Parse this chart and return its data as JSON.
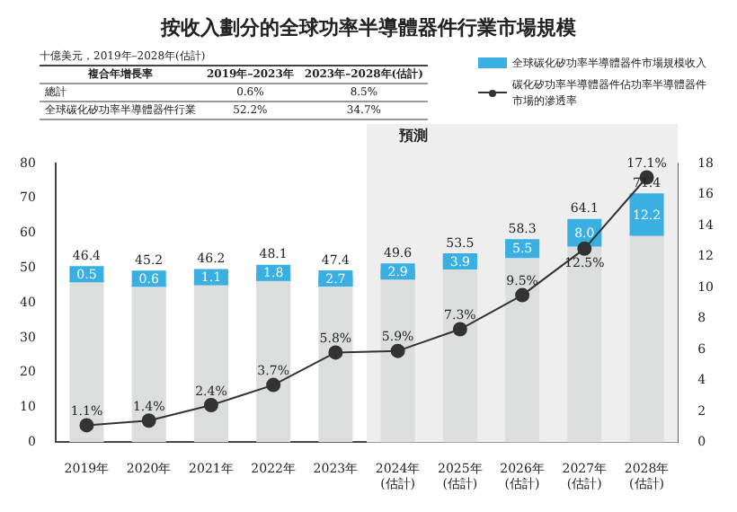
{
  "chart_data": {
    "type": "bar",
    "title": "按收入劃分的全球功率半導體器件行業市場規模",
    "categories": [
      "2019年",
      "2020年",
      "2021年",
      "2022年",
      "2023年",
      "2024年\n(估計)",
      "2025年\n(估計)",
      "2026年\n(估計)",
      "2027年\n(估計)",
      "2028年\n(估計)"
    ],
    "stacked": true,
    "series": [
      {
        "color": "#dcdedd",
        "values": [
          45.9,
          44.6,
          45.1,
          46.3,
          44.7,
          46.7,
          49.6,
          52.8,
          56.1,
          59.2
        ]
      },
      {
        "name": "全球碳化矽功率半導體器件市場規模收入",
        "color": "#3ab0e2",
        "values": [
          0.5,
          0.6,
          1.1,
          1.8,
          2.7,
          2.9,
          3.9,
          5.5,
          8.0,
          12.2
        ],
        "value_labels": [
          "0.5",
          "0.6",
          "1.1",
          "1.8",
          "2.7",
          "2.9",
          "3.9",
          "5.5",
          "8.0",
          "12.2"
        ]
      },
      {
        "type": "line",
        "axis": "y2",
        "name": "碳化矽功率半導體器件佔功率半導體器件市場的滲透率",
        "color": "#333333",
        "marker": "circle",
        "line_style": "solid",
        "values": [
          1.1,
          1.4,
          2.4,
          3.7,
          5.8,
          5.9,
          7.3,
          9.5,
          12.5,
          17.1
        ],
        "value_labels": [
          "1.1%",
          "1.4%",
          "2.4%",
          "3.7%",
          "5.8%",
          "5.9%",
          "7.3%",
          "9.5%",
          "12.5%",
          "17.1%"
        ]
      }
    ],
    "totals": [
      "46.4",
      "45.2",
      "46.2",
      "48.1",
      "47.4",
      "49.6",
      "53.5",
      "58.3",
      "64.1",
      "71.4"
    ],
    "ylim": [
      0,
      80
    ],
    "yticks": [
      0,
      10,
      20,
      30,
      40,
      50,
      60,
      70,
      80
    ],
    "y2lim": [
      0,
      18
    ],
    "y2ticks": [
      0,
      2,
      4,
      6,
      8,
      10,
      12,
      14,
      16,
      18
    ],
    "bands": [
      {
        "axis": "x",
        "from": "2024年\n(估計)",
        "to": "2028年\n(估計)",
        "label": "預測",
        "color": "#eeeeee"
      }
    ],
    "annotations": [
      "十億美元，2019年–2028年(估計)",
      "複合年增長率",
      "2019年–2023年",
      "2023年–2028年(估計)",
      "總計",
      "0.6%",
      "8.5%",
      "全球碳化矽功率半導體器件行業",
      "52.2%",
      "34.7%"
    ],
    "grid": false,
    "legend": "top right"
  }
}
